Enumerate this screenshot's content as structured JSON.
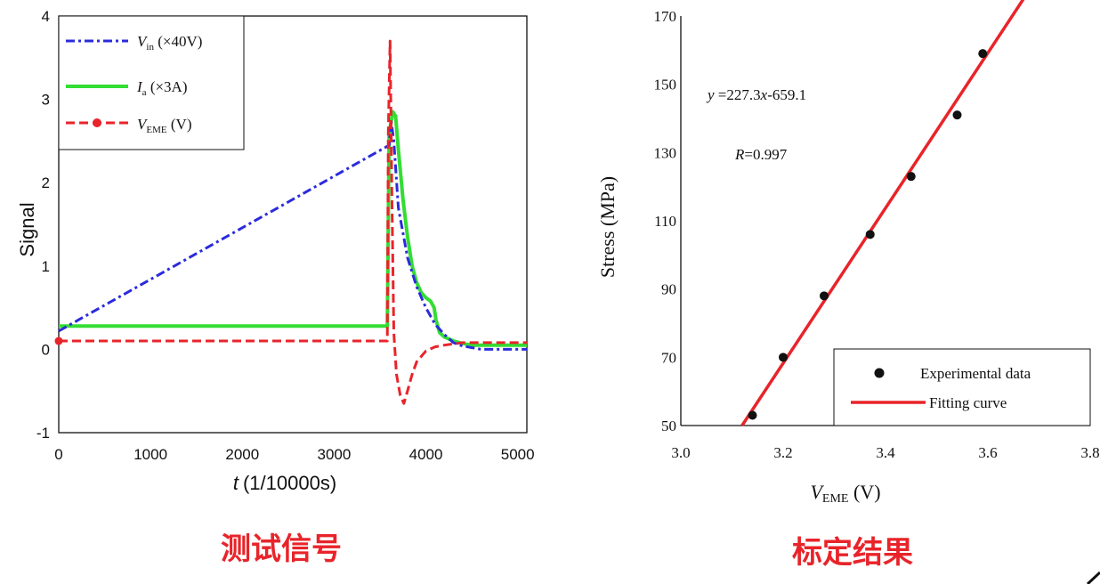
{
  "chart_data": [
    {
      "type": "line",
      "xlabel_var": "t",
      "xlabel_unit": "(1/10000s)",
      "ylabel": "Signal",
      "xlim": [
        0,
        5100
      ],
      "ylim": [
        -1,
        4
      ],
      "xticks": [
        "0",
        "1000",
        "2000",
        "3000",
        "4000",
        "5000"
      ],
      "yticks": [
        "-1",
        "0",
        "1",
        "2",
        "3",
        "4"
      ],
      "legend_position": "top-left",
      "series": [
        {
          "name_var": "V",
          "name_sub": "in",
          "name_rest": " (×40V)",
          "color": "#2b2bdc",
          "style": "dash-dot",
          "x": [
            0,
            3600,
            3620,
            3650,
            3700,
            3800,
            3900,
            4000,
            4100,
            4200,
            4300,
            4400,
            4500,
            4600,
            5100
          ],
          "y": [
            0.22,
            2.45,
            2.75,
            2.5,
            1.7,
            1.1,
            0.75,
            0.5,
            0.3,
            0.18,
            0.08,
            0.04,
            0.02,
            0.0,
            0.0
          ]
        },
        {
          "name_var": "I",
          "name_sub": "a",
          "name_rest": " (×3A)",
          "color": "#33dd33",
          "style": "solid",
          "x": [
            0,
            3580,
            3600,
            3640,
            3670,
            3700,
            3750,
            3800,
            3850,
            3900,
            3950,
            4000,
            4050,
            4090,
            4110,
            4150,
            4200,
            4300,
            4400,
            4500,
            4600,
            5100
          ],
          "y": [
            0.28,
            0.28,
            2.6,
            2.85,
            2.8,
            2.4,
            1.8,
            1.35,
            1.0,
            0.8,
            0.68,
            0.62,
            0.58,
            0.5,
            0.35,
            0.2,
            0.15,
            0.1,
            0.07,
            0.05,
            0.05,
            0.05
          ]
        },
        {
          "name_var": "V",
          "name_sub": "EME",
          "name_rest": " (V)",
          "color": "#e8242a",
          "style": "dashed-marker",
          "x": [
            0,
            3580,
            3590,
            3610,
            3630,
            3650,
            3680,
            3720,
            3760,
            3800,
            3850,
            3900,
            4000,
            4100,
            4200,
            4400,
            4600,
            5100
          ],
          "y": [
            0.1,
            0.1,
            2.6,
            3.7,
            1.8,
            0.2,
            -0.3,
            -0.55,
            -0.65,
            -0.5,
            -0.3,
            -0.15,
            -0.02,
            0.03,
            0.05,
            0.08,
            0.08,
            0.08
          ]
        }
      ]
    },
    {
      "type": "scatter",
      "xlabel_var": "V",
      "xlabel_sub": "EME",
      "xlabel_unit": " (V)",
      "ylabel": "Stress (MPa)",
      "xlim": [
        3.0,
        3.8
      ],
      "ylim": [
        50,
        170
      ],
      "xticks": [
        "3.0",
        "3.2",
        "3.4",
        "3.6",
        "3.8"
      ],
      "yticks": [
        "50",
        "70",
        "90",
        "110",
        "130",
        "150",
        "170"
      ],
      "legend_position": "bottom-right",
      "equation": "y=227.3x-659.1",
      "equation_parts": [
        "y",
        " =227.3",
        "x",
        "-659.1"
      ],
      "r_parts": [
        "R",
        "=0.997"
      ],
      "points": {
        "name": "Experimental data",
        "x": [
          3.14,
          3.2,
          3.28,
          3.37,
          3.45,
          3.54,
          3.59
        ],
        "y": [
          53,
          70,
          88,
          106,
          123,
          141,
          159
        ]
      },
      "fit": {
        "name": "Fitting curve",
        "slope": 227.3,
        "intercept": -659.1
      }
    }
  ],
  "captions": {
    "left": "测试信号",
    "right": "标定结果"
  },
  "colors": {
    "caption": "#e8242a",
    "fit_line": "#e8242a",
    "points": "#111111"
  }
}
